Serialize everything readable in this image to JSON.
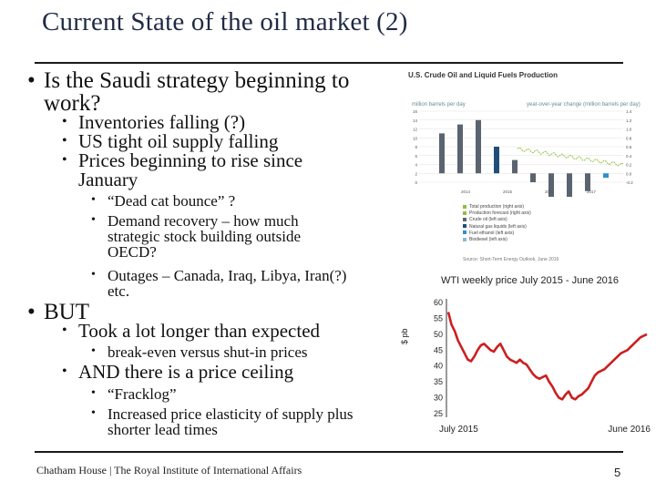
{
  "slide": {
    "title": "Current State of the oil market (2)",
    "footer": "Chatham House  |  The Royal Institute of International Affairs",
    "page_number": "5"
  },
  "bullets": [
    {
      "level": 1,
      "text": "Is the Saudi strategy beginning to work?"
    },
    {
      "level": 2,
      "text": "Inventories falling (?)"
    },
    {
      "level": 2,
      "text": "US tight oil supply falling"
    },
    {
      "level": 2,
      "text": "Prices beginning to rise since January"
    },
    {
      "level": 3,
      "text": "“Dead cat bounce” ?"
    },
    {
      "level": 3,
      "text": "Demand recovery – how much strategic stock building outside OECD?"
    },
    {
      "level": 3,
      "text": "Outages – Canada, Iraq, Libya, Iran(?) etc."
    },
    {
      "level": 1,
      "text": "BUT"
    },
    {
      "level": 2,
      "text": "Took a lot longer than expected"
    },
    {
      "level": 3,
      "text": "break-even versus shut-in prices"
    },
    {
      "level": 2,
      "text": "AND there is a price ceiling"
    },
    {
      "level": 3,
      "text": "“Fracklog”"
    },
    {
      "level": 3,
      "text": "Increased price elasticity of supply plus shorter lead times"
    }
  ],
  "eia_chart": {
    "title": "U.S. Crude Oil and Liquid Fuels Production",
    "left_axis_label": "million barrels per day",
    "right_axis_label": "year-over-year change (million barrels per day)",
    "left_ticks": [
      "16",
      "14",
      "12",
      "10",
      "8",
      "6",
      "4",
      "2",
      "0"
    ],
    "right_ticks": [
      "1.4",
      "1.2",
      "1.0",
      "0.8",
      "0.6",
      "0.4",
      "0.2",
      "0.0",
      "-0.2"
    ],
    "x_labels": [
      "2014",
      "2015",
      "2016",
      "2017"
    ],
    "legend": [
      {
        "label": "Total production (right axis)",
        "color": "#8fbf3f"
      },
      {
        "label": "Production forecast (right axis)",
        "color": "#8fbf3f"
      },
      {
        "label": "Crude oil (left axis)",
        "color": "#5a6470"
      },
      {
        "label": "Natural gas liquids (left axis)",
        "color": "#1e4f7a"
      },
      {
        "label": "Fuel ethanol (left axis)",
        "color": "#2e8fd0"
      },
      {
        "label": "Biodiesel (left axis)",
        "color": "#8db7d4"
      }
    ],
    "source": "Source: Short-Term Energy Outlook, June 2016",
    "line_color": "#8fbf3f",
    "bar_values": [
      0.9,
      1.1,
      1.2,
      0.6,
      0.3,
      -0.2,
      -0.6,
      -0.8,
      -0.4,
      -0.1
    ],
    "bar_colors": [
      "#5a6470",
      "#5a6470",
      "#5a6470",
      "#1e4f7a",
      "#5a6470",
      "#5a6470",
      "#5a6470",
      "#5a6470",
      "#5a6470",
      "#2e8fd0"
    ]
  },
  "chart_data": {
    "type": "line",
    "title": "WTI weekly price July 2015 - June 2016",
    "xlabel": "",
    "ylabel": "$ pb",
    "ylim": [
      25,
      60
    ],
    "y_ticks": [
      60,
      55,
      50,
      45,
      40,
      35,
      30,
      25
    ],
    "x_tick_labels": [
      "July 2015",
      "June 2016"
    ],
    "line_color": "#cc1f1f",
    "grid": false,
    "series": [
      {
        "name": "",
        "values": [
          57,
          53,
          51,
          48,
          46,
          44,
          42,
          41.5,
          43,
          45,
          46.5,
          47,
          46,
          45,
          44.5,
          46,
          47,
          45,
          43,
          42,
          41.5,
          41,
          42,
          41,
          40.5,
          39,
          37.5,
          36.5,
          36,
          36.5,
          37,
          35,
          33.5,
          31.5,
          30,
          29.5,
          31,
          32,
          30,
          29.5,
          30.5,
          31,
          32,
          33,
          35,
          37,
          38,
          38.5,
          39,
          40,
          41,
          42,
          43,
          44,
          44.5,
          45,
          46,
          47,
          48,
          49,
          49.5,
          50
        ]
      }
    ]
  }
}
